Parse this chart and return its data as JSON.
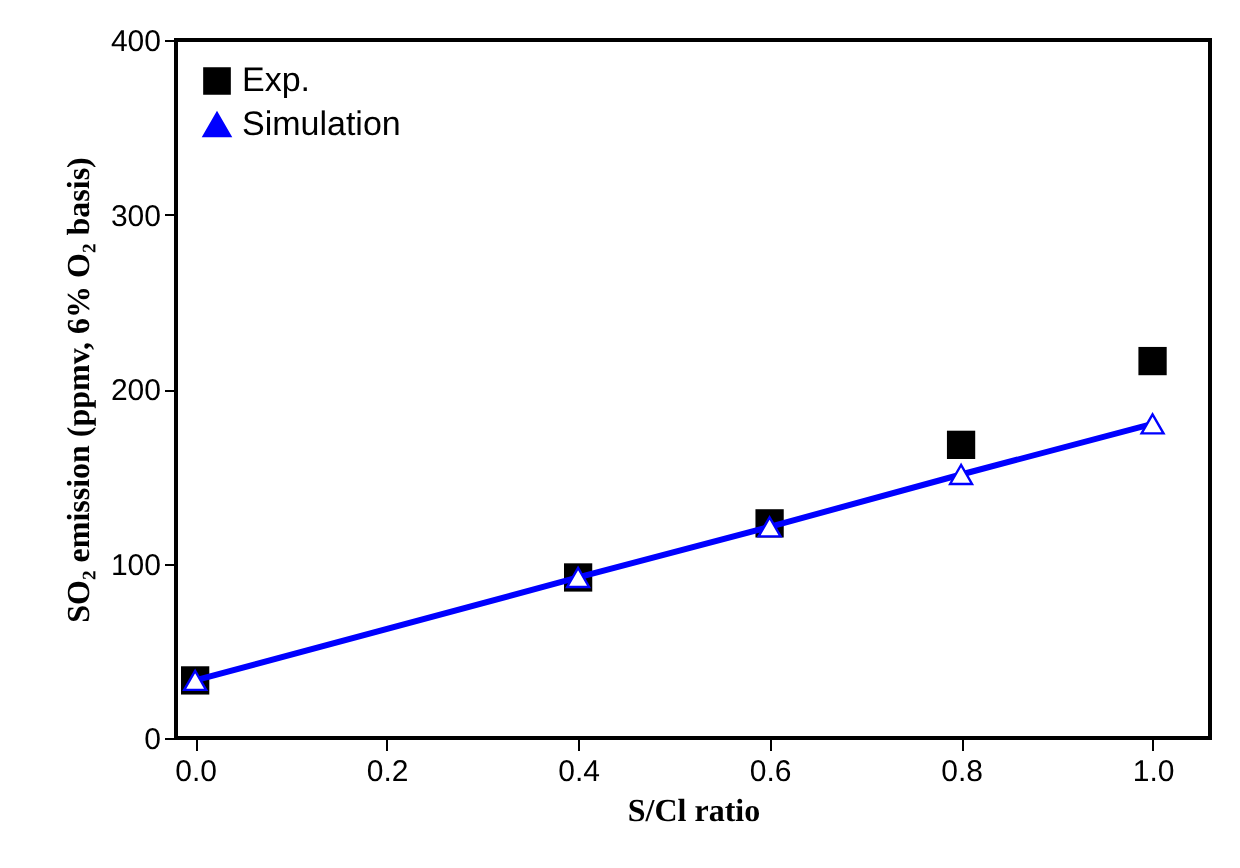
{
  "chart_data": {
    "type": "scatter",
    "xlabel": "S/Cl ratio",
    "ylabel": "SO₂ emission (ppmv, 6% O₂ basis)",
    "x": [
      0.0,
      0.4,
      0.6,
      0.8,
      1.0
    ],
    "series": [
      {
        "name": "Exp.",
        "color": "#000000",
        "marker": "square",
        "values": [
          33,
          92,
          123,
          168,
          216
        ]
      },
      {
        "name": "Simulation",
        "type": "line",
        "color": "#0000ff",
        "marker": "triangle",
        "line_style": "solid",
        "values": [
          33,
          92,
          121,
          151,
          180
        ]
      }
    ],
    "xlim": [
      -0.02,
      1.06
    ],
    "ylim": [
      0,
      400
    ],
    "xticks": [
      {
        "value": 0,
        "label": "0.0"
      },
      {
        "value": 0.2,
        "label": "0.2"
      },
      {
        "value": 0.4,
        "label": "0.4"
      },
      {
        "value": 0.6,
        "label": "0.6"
      },
      {
        "value": 0.8,
        "label": "0.8"
      },
      {
        "value": 1,
        "label": "1.0"
      }
    ],
    "yticks": [
      0,
      100,
      200,
      300,
      400
    ],
    "grid": false,
    "legend": "top left"
  }
}
